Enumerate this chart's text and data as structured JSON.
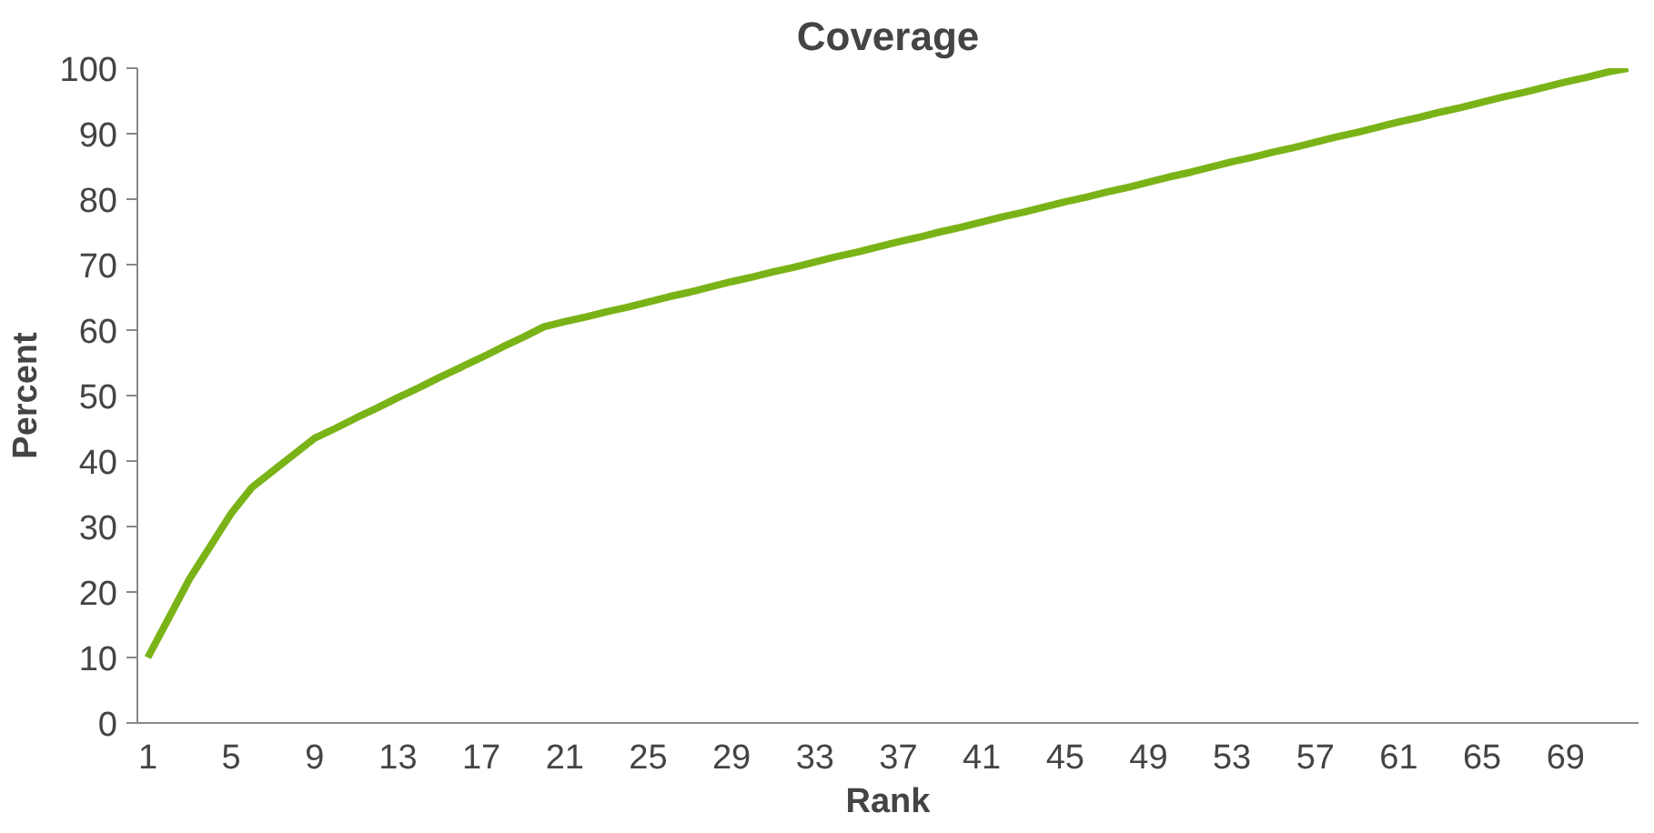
{
  "chart_data": {
    "type": "line",
    "title": "Coverage",
    "xlabel": "Rank",
    "ylabel": "Percent",
    "categories": [
      "1",
      null,
      null,
      null,
      "5",
      null,
      null,
      null,
      "9",
      null,
      null,
      null,
      "13",
      null,
      null,
      null,
      "17",
      null,
      null,
      null,
      "21",
      null,
      null,
      null,
      "25",
      null,
      null,
      null,
      "29",
      null,
      null,
      null,
      "33",
      null,
      null,
      null,
      "37",
      null,
      null,
      null,
      "41",
      null,
      null,
      null,
      "45",
      null,
      null,
      null,
      "49",
      null,
      null,
      null,
      "53",
      null,
      null,
      null,
      "57",
      null,
      null,
      null,
      "61",
      null,
      null,
      null,
      "65",
      null,
      null,
      null,
      "69",
      null,
      null,
      null
    ],
    "series": [
      {
        "color": "#7ab317",
        "values": [
          10,
          16,
          22,
          27,
          32,
          36,
          38.5,
          41,
          43.5,
          45.0,
          46.6,
          48.1,
          49.7,
          51.2,
          52.8,
          54.3,
          55.8,
          57.4,
          58.9,
          60.5,
          61.3,
          62.0,
          62.8,
          63.5,
          64.3,
          65.1,
          65.8,
          66.6,
          67.4,
          68.1,
          68.9,
          69.6,
          70.4,
          71.2,
          71.9,
          72.7,
          73.5,
          74.2,
          75.0,
          75.7,
          76.5,
          77.3,
          78.0,
          78.8,
          79.6,
          80.3,
          81.1,
          81.8,
          82.6,
          83.4,
          84.1,
          84.9,
          85.7,
          86.4,
          87.2,
          87.9,
          88.7,
          89.5,
          90.2,
          91.0,
          91.8,
          92.5,
          93.3,
          94.0,
          94.8,
          95.6,
          96.3,
          97.1,
          97.9,
          98.6,
          99.4,
          100
        ]
      }
    ],
    "ylim": [
      0,
      100
    ],
    "yticks": [
      0,
      10,
      20,
      30,
      40,
      50,
      60,
      70,
      80,
      90,
      100
    ],
    "grid": false,
    "marker": "none",
    "line_style": "solid"
  }
}
